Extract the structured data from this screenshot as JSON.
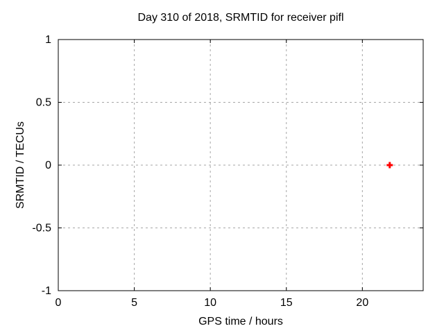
{
  "window": {
    "kind": "gnuplot-plot-window"
  },
  "colors": {
    "background": "#ffffff",
    "border": "#000000",
    "grid": "#a6a6a6",
    "text": "#000000",
    "marker_red": "#ff0000"
  },
  "chart_data": {
    "type": "scatter",
    "title": "Day 310 of 2018, SRMTID for receiver pifl",
    "xlabel": "GPS time / hours",
    "ylabel": "SRMTID / TECUs",
    "xlim": [
      0,
      24
    ],
    "ylim": [
      -1,
      1
    ],
    "xticks": {
      "values": [
        0,
        5,
        10,
        15,
        20
      ],
      "labels": [
        "0",
        "5",
        "10",
        "15",
        "20"
      ]
    },
    "yticks": {
      "values": [
        1,
        0.5,
        0,
        -0.5,
        -1
      ],
      "labels": [
        "1",
        "0.5",
        "0",
        "-0.5",
        "-1"
      ]
    },
    "grid": true,
    "grid_style": "dashed",
    "legend": "none",
    "series": [
      {
        "name": "SRMTID",
        "type": "scatter",
        "marker": "plus",
        "color": "#ff0000",
        "x": [
          21.8
        ],
        "y": [
          0.0
        ]
      }
    ]
  }
}
